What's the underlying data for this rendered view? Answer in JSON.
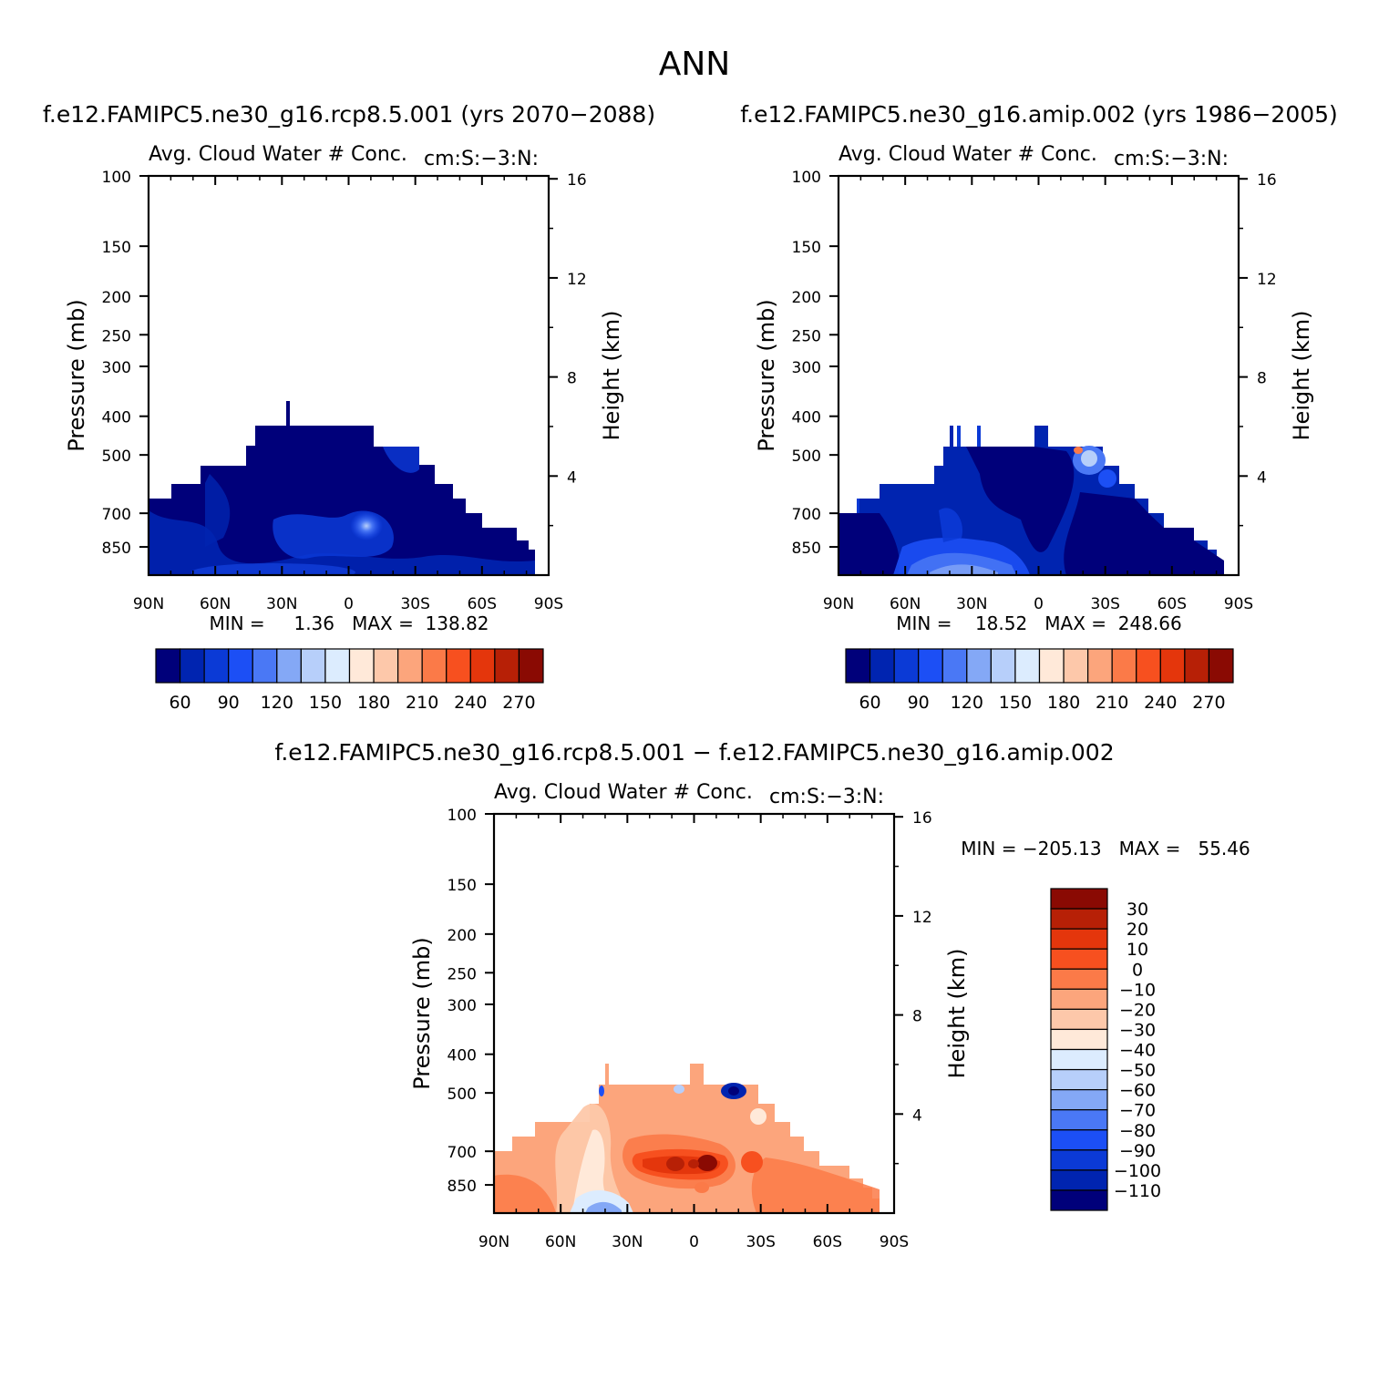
{
  "title": "ANN",
  "palettes": {
    "abs": [
      "#00007a",
      "#0024b0",
      "#0b3ad6",
      "#1c4ff5",
      "#4a78f5",
      "#84a8f6",
      "#b7cffa",
      "#dcecfe",
      "#ffe9d9",
      "#fdc8aa",
      "#fca57c",
      "#fb7a48",
      "#f7501f",
      "#e4360c",
      "#b72006",
      "#8a0a03"
    ],
    "diff": [
      "#00007a",
      "#0024b0",
      "#0b3ad6",
      "#1c4ff5",
      "#4a78f5",
      "#84a8f6",
      "#b7cffa",
      "#dcecfe",
      "#ffe9d9",
      "#fdc8aa",
      "#fca57c",
      "#fb7a48",
      "#f7501f",
      "#e4360c",
      "#b72006",
      "#8a0a03"
    ]
  },
  "chart_data": [
    {
      "type": "heatmap",
      "id": "p1",
      "case_title": "f.e12.FAMIPC5.ne30_g16.rcp8.5.001 (yrs 2070-2088)",
      "variable": "Avg. Cloud Water # Conc.",
      "units": "cm:S:-3:N:",
      "ylabel": "Pressure (mb)",
      "ylabel_right": "Height (km)",
      "x_ticks": [
        "90N",
        "60N",
        "30N",
        "0",
        "30S",
        "60S",
        "90S"
      ],
      "y_ticks": [
        "100",
        "150",
        "200",
        "250",
        "300",
        "400",
        "500",
        "700",
        "850"
      ],
      "y_tick_values": [
        100,
        150,
        200,
        250,
        300,
        400,
        500,
        700,
        850
      ],
      "ylim": [
        100,
        1000
      ],
      "right_ticks": [
        "16",
        "12",
        "8",
        "4"
      ],
      "right_tick_values": [
        16,
        12,
        8,
        4
      ],
      "min_label": "MIN =     1.36   MAX =  138.82",
      "min": 1.36,
      "max": 138.82,
      "colorbar_labels": [
        "60",
        "90",
        "120",
        "150",
        "180",
        "210",
        "240",
        "270"
      ],
      "colorbar_levels": [
        60,
        90,
        120,
        150,
        180,
        210,
        240,
        270
      ]
    },
    {
      "type": "heatmap",
      "id": "p2",
      "case_title": "f.e12.FAMIPC5.ne30_g16.amip.002 (yrs 1986-2005)",
      "variable": "Avg. Cloud Water # Conc.",
      "units": "cm:S:-3:N:",
      "ylabel": "Pressure (mb)",
      "ylabel_right": "Height (km)",
      "x_ticks": [
        "90N",
        "60N",
        "30N",
        "0",
        "30S",
        "60S",
        "90S"
      ],
      "y_ticks": [
        "100",
        "150",
        "200",
        "250",
        "300",
        "400",
        "500",
        "700",
        "850"
      ],
      "y_tick_values": [
        100,
        150,
        200,
        250,
        300,
        400,
        500,
        700,
        850
      ],
      "ylim": [
        100,
        1000
      ],
      "right_ticks": [
        "16",
        "12",
        "8",
        "4"
      ],
      "right_tick_values": [
        16,
        12,
        8,
        4
      ],
      "min_label": "MIN =    18.52   MAX =  248.66",
      "min": 18.52,
      "max": 248.66,
      "colorbar_labels": [
        "60",
        "90",
        "120",
        "150",
        "180",
        "210",
        "240",
        "270"
      ],
      "colorbar_levels": [
        60,
        90,
        120,
        150,
        180,
        210,
        240,
        270
      ]
    },
    {
      "type": "heatmap",
      "id": "p3",
      "case_title": "f.e12.FAMIPC5.ne30_g16.rcp8.5.001 - f.e12.FAMIPC5.ne30_g16.amip.002",
      "variable": "Avg. Cloud Water # Conc.",
      "units": "cm:S:-3:N:",
      "ylabel": "Pressure (mb)",
      "ylabel_right": "Height (km)",
      "x_ticks": [
        "90N",
        "60N",
        "30N",
        "0",
        "30S",
        "60S",
        "90S"
      ],
      "y_ticks": [
        "100",
        "150",
        "200",
        "250",
        "300",
        "400",
        "500",
        "700",
        "850"
      ],
      "y_tick_values": [
        100,
        150,
        200,
        250,
        300,
        400,
        500,
        700,
        850
      ],
      "ylim": [
        100,
        1000
      ],
      "right_ticks": [
        "16",
        "12",
        "8",
        "4"
      ],
      "right_tick_values": [
        16,
        12,
        8,
        4
      ],
      "min_label": "MIN = -205.13   MAX =   55.46",
      "min": -205.13,
      "max": 55.46,
      "colorbar_labels": [
        "30",
        "20",
        "10",
        "0",
        "-10",
        "-20",
        "-30",
        "-40",
        "-50",
        "-60",
        "-70",
        "-80",
        "-90",
        "-100",
        "-110"
      ],
      "colorbar_levels": [
        30,
        20,
        10,
        0,
        -10,
        -20,
        -30,
        -40,
        -50,
        -60,
        -70,
        -80,
        -90,
        -100,
        -110
      ]
    }
  ]
}
